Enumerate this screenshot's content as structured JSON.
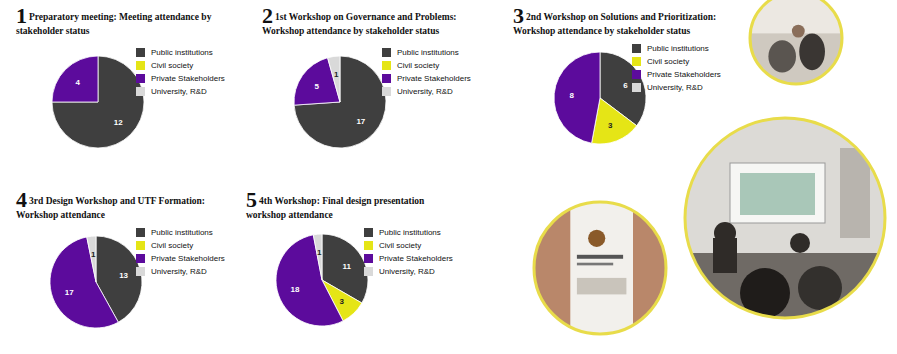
{
  "chart_data": [
    {
      "type": "pie",
      "number": "1",
      "title": "Preparatory meeting: Meeting attendance by stakeholder status",
      "categories": [
        "Public institutions",
        "Civil society",
        "Private Stakeholders",
        "University, R&D"
      ],
      "values": [
        12,
        0,
        4,
        0
      ],
      "colors": [
        "#3f3f3f",
        "#e5e516",
        "#5c0b9c",
        "#d9d9d9"
      ],
      "data_labels": true,
      "legend": "right"
    },
    {
      "type": "pie",
      "number": "2",
      "title": "1st Workshop on Governance and Problems: Workshop attendance by stakeholder status",
      "categories": [
        "Public institutions",
        "Civil society",
        "Private Stakeholders",
        "University, R&D"
      ],
      "values": [
        17,
        0,
        5,
        1
      ],
      "colors": [
        "#3f3f3f",
        "#e5e516",
        "#5c0b9c",
        "#d9d9d9"
      ],
      "data_labels": true,
      "legend": "right"
    },
    {
      "type": "pie",
      "number": "3",
      "title": "2nd Workshop on Solutions and Prioritization: Workshop attendance by stakeholder status",
      "categories": [
        "Public institutions",
        "Civil society",
        "Private Stakeholders",
        "University, R&D"
      ],
      "values": [
        6,
        3,
        8,
        0
      ],
      "colors": [
        "#3f3f3f",
        "#e5e516",
        "#5c0b9c",
        "#d9d9d9"
      ],
      "data_labels": true,
      "legend": "right"
    },
    {
      "type": "pie",
      "number": "4",
      "title": "3rd Design Workshop and UTF Formation: Workshop attendance",
      "categories": [
        "Public institutions",
        "Civil society",
        "Private Stakeholders",
        "University, R&D"
      ],
      "values": [
        13,
        0,
        17,
        1
      ],
      "colors": [
        "#3f3f3f",
        "#e5e516",
        "#5c0b9c",
        "#d9d9d9"
      ],
      "data_labels": true,
      "legend": "right"
    },
    {
      "type": "pie",
      "number": "5",
      "title": "4th Workshop: Final design presentation workshop attendance",
      "categories": [
        "Public institutions",
        "Civil society",
        "Private Stakeholders",
        "University, R&D"
      ],
      "values": [
        11,
        3,
        18,
        1
      ],
      "colors": [
        "#3f3f3f",
        "#e5e516",
        "#5c0b9c",
        "#d9d9d9"
      ],
      "data_labels": true,
      "legend": "right"
    }
  ]
}
